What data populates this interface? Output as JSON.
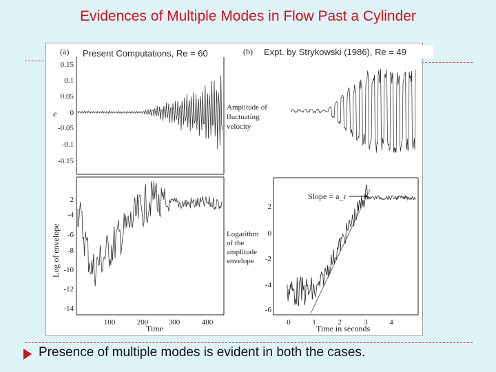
{
  "title": "Evidences of Multiple Modes in Flow Past a Cylinder",
  "panel_a": {
    "label": "(a)",
    "caption": "Present Computations, Re = 60",
    "top_ylabel": "e",
    "top_yticks": [
      "0.15",
      "0.1",
      "0.05",
      "0",
      "-0.05",
      "-0.1",
      "-0.15"
    ],
    "bottom_ylabel": "Log of envelope",
    "bottom_yticks": [
      "2",
      "-4",
      "-6",
      "-8",
      "-10",
      "-12",
      "-14"
    ],
    "xticks": [
      "100",
      "200",
      "300",
      "400"
    ],
    "xlabel": "Time"
  },
  "panel_b": {
    "label": "(b)",
    "caption": "Expt. by Strykowski (1986), Re = 49",
    "top_ylabel": [
      "Amplitude of",
      "fluctuating",
      "velocity"
    ],
    "bottom_ylabel": [
      "Logarithm",
      "of the",
      "amplitude",
      "envelope"
    ],
    "bottom_yticks": [
      "2",
      "0",
      "-2",
      "-4",
      "-6"
    ],
    "xticks": [
      "0",
      "1",
      "2",
      "3",
      "4"
    ],
    "xlabel": "Time in seconds",
    "annotation": "Slope = a_r"
  },
  "bottom_text": "Presence of multiple modes is evident in both the cases.",
  "colors": {
    "title": "#c8141e",
    "bullet": "#c8141e",
    "background": "#dff4f8"
  }
}
